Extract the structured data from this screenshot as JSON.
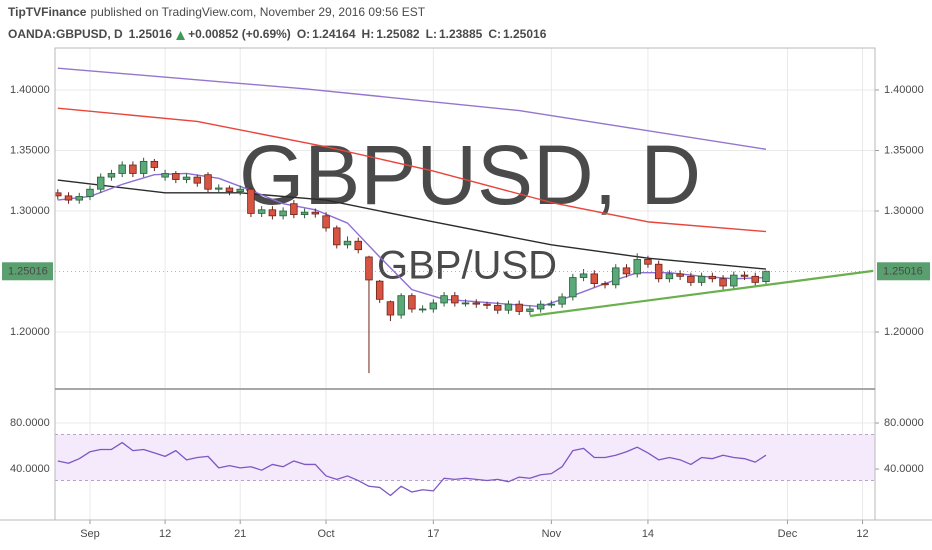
{
  "header": {
    "author": "TipTVFinance",
    "published": "published on TradingView.com, November 29, 2016 09:56 EST",
    "symbol": "OANDA:GBPUSD, D",
    "last": "1.25016",
    "change": "+0.00852 (+0.69%)",
    "ohlc": [
      {
        "label": "O:",
        "value": "1.24164"
      },
      {
        "label": "H:",
        "value": "1.25082"
      },
      {
        "label": "L:",
        "value": "1.23885"
      },
      {
        "label": "C:",
        "value": "1.25016"
      }
    ]
  },
  "chart_data": [
    {
      "type": "candlestick",
      "watermark": "GBPUSD, D",
      "watermark_sub": "GBP/USD",
      "up_color": "#5aa978",
      "up_border": "#2c5d3c",
      "down_color": "#d75442",
      "down_border": "#6b2219",
      "x": [
        -3,
        -2,
        -1,
        0,
        1,
        2,
        3,
        4,
        5,
        6,
        7,
        8,
        9,
        10,
        11,
        12,
        13,
        14,
        15,
        16,
        17,
        18,
        19,
        20,
        21,
        22,
        23,
        24,
        25,
        26,
        27,
        28,
        29,
        30,
        31,
        32,
        33,
        34,
        35,
        36,
        37,
        38,
        39,
        40,
        41,
        42,
        43,
        44,
        45,
        46,
        47,
        48,
        49,
        50,
        51,
        52,
        53,
        54,
        55,
        56,
        57,
        58,
        59,
        60,
        61,
        62,
        63
      ],
      "open": [
        1.315,
        1.3125,
        1.309,
        1.312,
        1.318,
        1.328,
        1.331,
        1.338,
        1.331,
        1.341,
        1.328,
        1.331,
        1.326,
        1.328,
        1.33,
        1.318,
        1.319,
        1.316,
        1.318,
        1.298,
        1.301,
        1.296,
        1.306,
        1.297,
        1.299,
        1.296,
        1.286,
        1.272,
        1.275,
        1.262,
        1.242,
        1.225,
        1.214,
        1.23,
        1.219,
        1.219,
        1.224,
        1.23,
        1.224,
        1.224,
        1.223,
        1.222,
        1.218,
        1.223,
        1.217,
        1.219,
        1.223,
        1.223,
        1.229,
        1.245,
        1.248,
        1.24,
        1.239,
        1.253,
        1.248,
        1.26,
        1.256,
        1.244,
        1.248,
        1.246,
        1.241,
        1.246,
        1.244,
        1.238,
        1.247,
        1.246,
        1.24164
      ],
      "high": [
        1.318,
        1.3155,
        1.315,
        1.321,
        1.331,
        1.334,
        1.341,
        1.341,
        1.344,
        1.343,
        1.334,
        1.333,
        1.331,
        1.33,
        1.332,
        1.322,
        1.321,
        1.321,
        1.32,
        1.304,
        1.304,
        1.303,
        1.309,
        1.302,
        1.302,
        1.299,
        1.288,
        1.279,
        1.278,
        1.263,
        1.243,
        1.226,
        1.232,
        1.232,
        1.222,
        1.227,
        1.233,
        1.233,
        1.227,
        1.227,
        1.225,
        1.225,
        1.226,
        1.226,
        1.222,
        1.226,
        1.226,
        1.232,
        1.248,
        1.252,
        1.251,
        1.242,
        1.256,
        1.256,
        1.265,
        1.263,
        1.259,
        1.251,
        1.251,
        1.249,
        1.249,
        1.249,
        1.247,
        1.25,
        1.25,
        1.249,
        1.25082
      ],
      "low": [
        1.3095,
        1.306,
        1.306,
        1.309,
        1.315,
        1.325,
        1.328,
        1.328,
        1.328,
        1.333,
        1.325,
        1.323,
        1.323,
        1.32,
        1.315,
        1.315,
        1.313,
        1.313,
        1.295,
        1.295,
        1.293,
        1.293,
        1.294,
        1.294,
        1.2945,
        1.283,
        1.269,
        1.269,
        1.265,
        1.166,
        1.224,
        1.209,
        1.211,
        1.216,
        1.216,
        1.216,
        1.221,
        1.221,
        1.221,
        1.22,
        1.219,
        1.215,
        1.215,
        1.214,
        1.214,
        1.216,
        1.22,
        1.22,
        1.226,
        1.242,
        1.237,
        1.236,
        1.236,
        1.245,
        1.245,
        1.253,
        1.241,
        1.241,
        1.243,
        1.238,
        1.238,
        1.241,
        1.235,
        1.235,
        1.243,
        1.238,
        1.23885
      ],
      "close": [
        1.3125,
        1.309,
        1.312,
        1.318,
        1.328,
        1.331,
        1.338,
        1.331,
        1.341,
        1.336,
        1.331,
        1.326,
        1.328,
        1.323,
        1.318,
        1.319,
        1.316,
        1.318,
        1.298,
        1.301,
        1.296,
        1.3,
        1.297,
        1.299,
        1.2975,
        1.286,
        1.272,
        1.275,
        1.268,
        1.243,
        1.227,
        1.214,
        1.23,
        1.219,
        1.219,
        1.224,
        1.23,
        1.224,
        1.224,
        1.223,
        1.222,
        1.218,
        1.223,
        1.217,
        1.219,
        1.223,
        1.223,
        1.229,
        1.245,
        1.248,
        1.24,
        1.239,
        1.253,
        1.248,
        1.26,
        1.256,
        1.244,
        1.248,
        1.246,
        1.241,
        1.246,
        1.244,
        1.238,
        1.247,
        1.246,
        1.241,
        1.25016
      ],
      "lines": [
        {
          "color": "#9575cd",
          "x": [
            -3,
            20,
            40,
            63
          ],
          "values": [
            1.418,
            1.401,
            1.383,
            1.351
          ]
        },
        {
          "color": "#e8453c",
          "x": [
            -3,
            10,
            22,
            32,
            43,
            52,
            63
          ],
          "values": [
            1.385,
            1.374,
            1.353,
            1.333,
            1.307,
            1.291,
            1.283
          ]
        },
        {
          "color": "#2b2b2b",
          "x": [
            -3,
            7,
            14,
            22,
            32,
            43,
            52,
            63
          ],
          "values": [
            1.3256,
            1.315,
            1.315,
            1.309,
            1.291,
            1.272,
            1.261,
            1.252
          ]
        },
        {
          "color": "#8e6fd6",
          "x": [
            -3,
            0,
            3,
            6,
            9,
            12,
            15,
            18,
            21,
            24,
            27,
            30,
            33,
            36,
            39,
            42,
            45,
            48,
            51,
            54,
            57,
            60,
            63
          ],
          "values": [
            1.309,
            1.312,
            1.322,
            1.33,
            1.331,
            1.327,
            1.317,
            1.306,
            1.301,
            1.29,
            1.262,
            1.235,
            1.227,
            1.225,
            1.223,
            1.221,
            1.23,
            1.24,
            1.249,
            1.249,
            1.246,
            1.244,
            1.245
          ]
        }
      ],
      "trendline": {
        "color": "#6ab04c",
        "x": [
          41,
          73
        ],
        "values": [
          1.2132,
          1.2505
        ]
      },
      "last_color": "#5a9f6e",
      "xlim": [
        -3.26,
        73.16
      ],
      "ylim": [
        1.1537,
        1.4347
      ],
      "xticks": [
        0,
        7,
        14,
        22,
        32,
        43,
        52,
        65,
        72
      ],
      "yticks": [
        {
          "value": 1.2,
          "label": "1.20000"
        },
        {
          "value": 1.3,
          "label": "1.30000"
        },
        {
          "value": 1.35,
          "label": "1.35000"
        },
        {
          "value": 1.4,
          "label": "1.40000"
        }
      ],
      "grid": true
    },
    {
      "type": "line",
      "color": "#7e57c2",
      "band": [
        30,
        70
      ],
      "band_color": "#f5e9fc",
      "x": [
        -3,
        -2,
        -1,
        0,
        1,
        2,
        3,
        4,
        5,
        6,
        7,
        8,
        9,
        10,
        11,
        12,
        13,
        14,
        15,
        16,
        17,
        18,
        19,
        20,
        21,
        22,
        23,
        24,
        25,
        26,
        27,
        28,
        29,
        30,
        31,
        32,
        33,
        34,
        35,
        36,
        37,
        38,
        39,
        40,
        41,
        42,
        43,
        44,
        45,
        46,
        47,
        48,
        49,
        50,
        51,
        52,
        53,
        54,
        55,
        56,
        57,
        58,
        59,
        60,
        61,
        62,
        63
      ],
      "values": [
        47,
        45,
        49,
        55,
        57,
        57,
        63,
        56,
        57,
        54,
        51,
        56,
        48,
        50,
        51,
        41,
        43,
        41,
        42,
        39,
        44,
        42,
        47,
        44,
        44,
        34,
        31,
        34,
        30,
        25,
        24,
        17,
        25,
        20,
        22,
        21,
        32,
        31,
        32,
        31,
        30,
        31,
        29,
        33,
        32,
        35,
        36,
        42,
        56,
        58,
        50,
        50,
        52,
        55,
        59,
        54,
        48,
        50,
        48,
        44,
        50,
        49,
        52,
        50,
        49,
        46,
        52
      ],
      "xlim": [
        -3.26,
        73.16
      ],
      "ylim": [
        -4.3,
        108.7
      ],
      "xticks": [
        {
          "value": 0,
          "label": "Sep"
        },
        {
          "value": 7,
          "label": "12"
        },
        {
          "value": 14,
          "label": "21"
        },
        {
          "value": 22,
          "label": "Oct"
        },
        {
          "value": 32,
          "label": "17"
        },
        {
          "value": 43,
          "label": "Nov"
        },
        {
          "value": 52,
          "label": "14"
        },
        {
          "value": 65,
          "label": "Dec"
        },
        {
          "value": 72,
          "label": "12"
        }
      ],
      "yticks": [
        {
          "value": 40,
          "label": "40.0000"
        },
        {
          "value": 80,
          "label": "80.0000"
        }
      ],
      "grid": true
    }
  ]
}
